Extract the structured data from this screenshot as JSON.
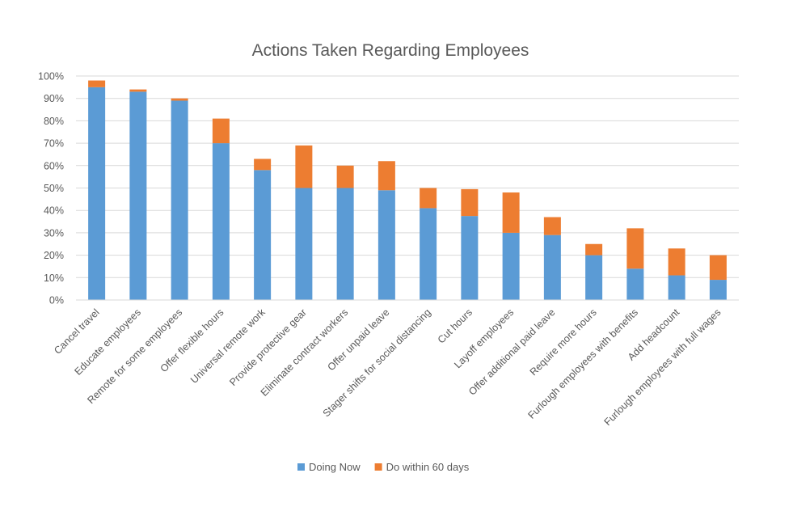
{
  "chart_data": {
    "type": "bar",
    "stacked": true,
    "title": "Actions Taken Regarding Employees",
    "xlabel": "",
    "ylabel": "",
    "ylim": [
      0,
      100
    ],
    "yticks": [
      0,
      10,
      20,
      30,
      40,
      50,
      60,
      70,
      80,
      90,
      100
    ],
    "ytick_labels": [
      "0%",
      "10%",
      "20%",
      "30%",
      "40%",
      "50%",
      "60%",
      "70%",
      "80%",
      "90%",
      "100%"
    ],
    "grid": true,
    "legend_position": "bottom",
    "categories": [
      "Cancel travel",
      "Educate employees",
      "Remote for some employees",
      "Offer flexible hours",
      "Universal remote work",
      "Provide protective gear",
      "Eliminate contract workers",
      "Offer unpaid leave",
      "Stager shifts for social distancing",
      "Cut hours",
      "Layoff employees",
      "Offer additional paid leave",
      "Require more hours",
      "Furlough employees with benefits",
      "Add headcount",
      "Furlough employees with full wages"
    ],
    "series": [
      {
        "name": "Doing Now",
        "color": "#5B9BD5",
        "values": [
          95,
          93,
          89,
          70,
          58,
          50,
          50,
          49,
          41,
          37.5,
          30,
          29,
          20,
          14,
          11,
          9
        ]
      },
      {
        "name": "Do within 60 days",
        "color": "#ED7D31",
        "values": [
          3,
          1,
          1,
          11,
          5,
          19,
          10,
          13,
          9,
          12,
          18,
          8,
          5,
          18,
          12,
          11
        ]
      }
    ]
  }
}
